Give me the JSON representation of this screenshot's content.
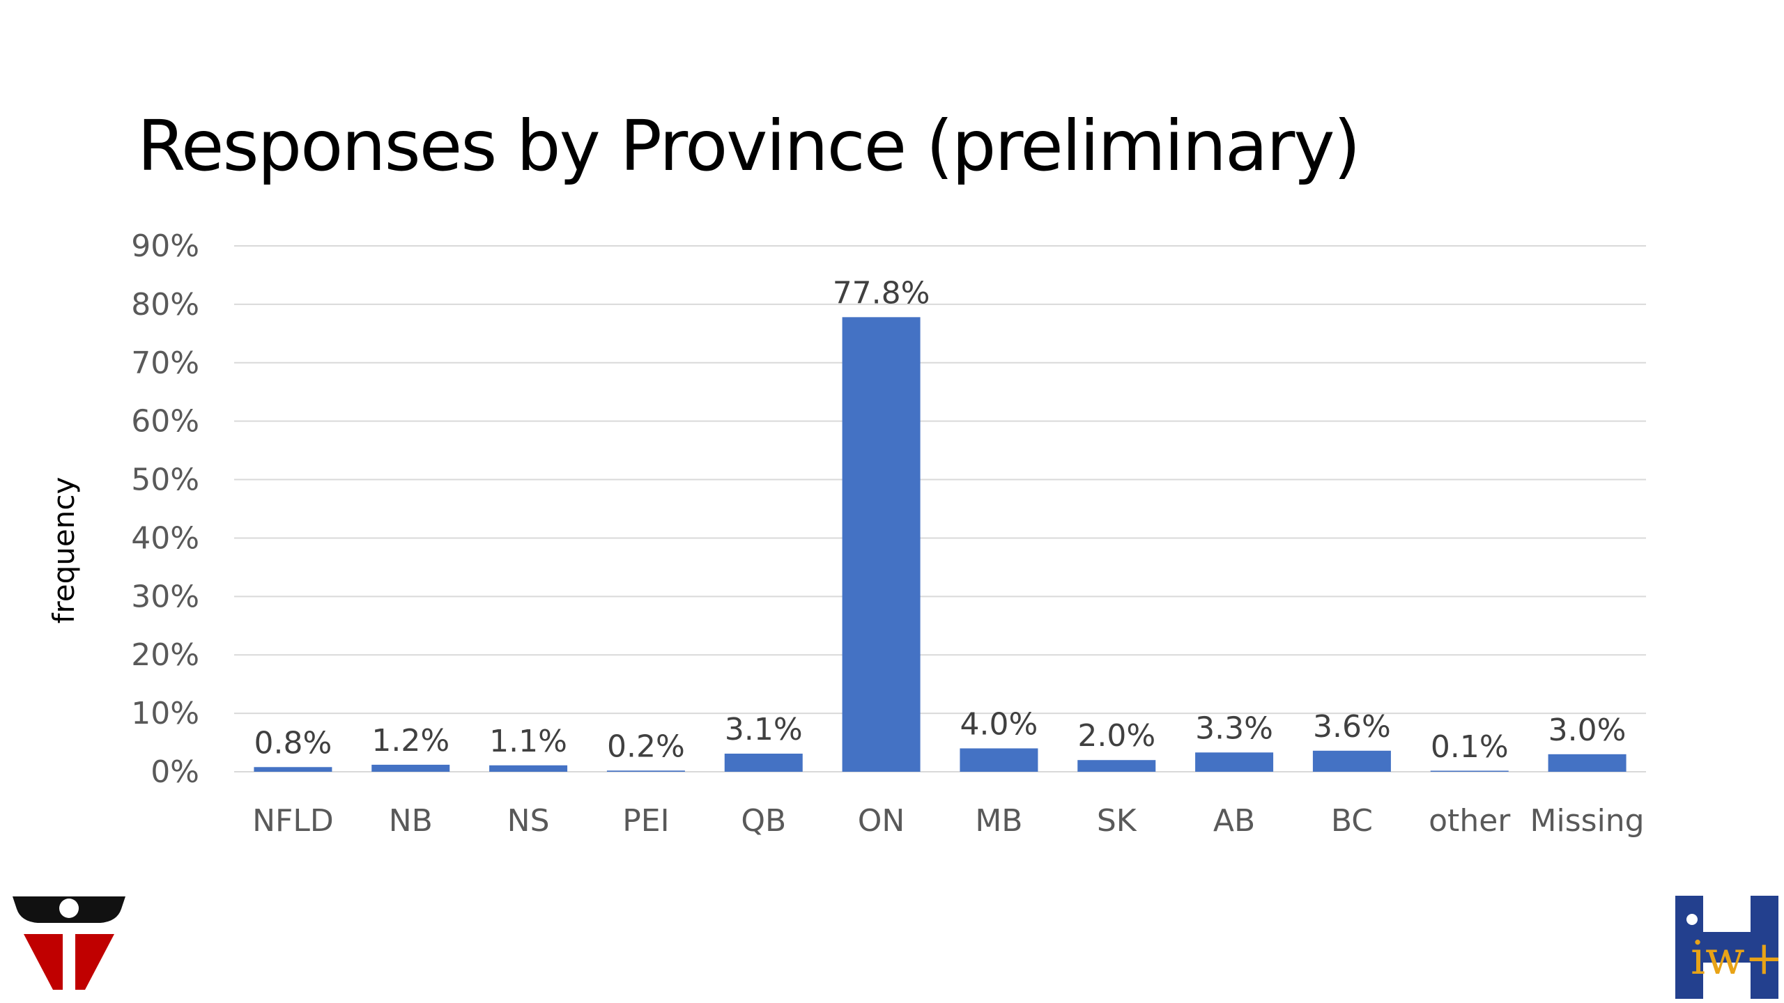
{
  "slide": {
    "title": "Responses by Province (preliminary)"
  },
  "chart_data": {
    "type": "bar",
    "title": "Responses by Province (preliminary)",
    "xlabel": "",
    "ylabel": "frequency",
    "categories": [
      "NFLD",
      "NB",
      "NS",
      "PEI",
      "QB",
      "ON",
      "MB",
      "SK",
      "AB",
      "BC",
      "other",
      "Missing"
    ],
    "values": [
      0.8,
      1.2,
      1.1,
      0.2,
      3.1,
      77.8,
      4.0,
      2.0,
      3.3,
      3.6,
      0.1,
      3.0
    ],
    "data_labels": [
      "0.8%",
      "1.2%",
      "1.1%",
      "0.2%",
      "3.1%",
      "77.8%",
      "4.0%",
      "2.0%",
      "3.3%",
      "3.6%",
      "0.1%",
      "3.0%"
    ],
    "ylim": [
      0,
      90
    ],
    "yticks": [
      0,
      10,
      20,
      30,
      40,
      50,
      60,
      70,
      80,
      90
    ],
    "ytick_labels": [
      "0%",
      "10%",
      "20%",
      "30%",
      "40%",
      "50%",
      "60%",
      "70%",
      "80%",
      "90%"
    ],
    "grid": true,
    "legend": "none",
    "bar_color": "#4472C4",
    "gridline_color": "#D9D9D9"
  },
  "logos": {
    "left": "red-black-shield-logo",
    "right": "blue-h-iwh-logo",
    "right_text": "iw+"
  }
}
